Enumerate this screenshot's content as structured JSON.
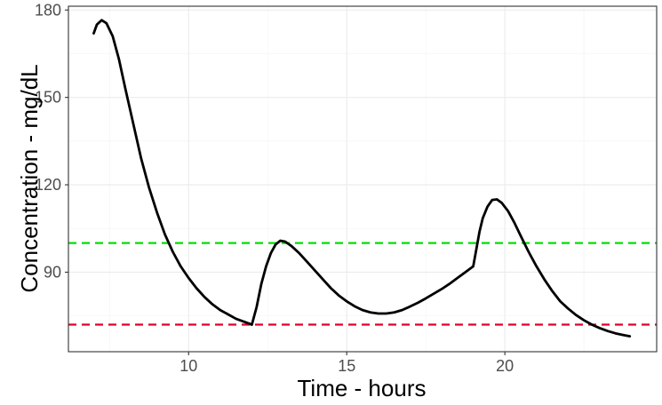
{
  "chart_data": {
    "type": "line",
    "xlabel": "Time - hours",
    "ylabel": "Concentration - mg/dL",
    "xlim": [
      6.2,
      24.8
    ],
    "ylim": [
      62.7,
      181.3
    ],
    "x_ticks": [
      10,
      15,
      20
    ],
    "y_ticks": [
      90,
      120,
      150,
      180
    ],
    "grid": true,
    "series": [
      {
        "color": "#000000",
        "points": [
          [
            7.0,
            172
          ],
          [
            7.1,
            175
          ],
          [
            7.25,
            176.5
          ],
          [
            7.4,
            175.5
          ],
          [
            7.6,
            171
          ],
          [
            7.8,
            163
          ],
          [
            8.0,
            153
          ],
          [
            8.25,
            141
          ],
          [
            8.5,
            129
          ],
          [
            8.75,
            119
          ],
          [
            9.0,
            110.5
          ],
          [
            9.25,
            103
          ],
          [
            9.5,
            97
          ],
          [
            9.75,
            92
          ],
          [
            10.0,
            88
          ],
          [
            10.25,
            84.5
          ],
          [
            10.5,
            81.5
          ],
          [
            10.75,
            79
          ],
          [
            11.0,
            77
          ],
          [
            11.25,
            75.5
          ],
          [
            11.5,
            74
          ],
          [
            11.75,
            73
          ],
          [
            12.0,
            72
          ],
          [
            12.15,
            78
          ],
          [
            12.3,
            86
          ],
          [
            12.45,
            92
          ],
          [
            12.6,
            96.5
          ],
          [
            12.75,
            99.5
          ],
          [
            12.9,
            100.8
          ],
          [
            13.05,
            100.5
          ],
          [
            13.25,
            99
          ],
          [
            13.5,
            96.5
          ],
          [
            13.75,
            93.5
          ],
          [
            14.0,
            90.5
          ],
          [
            14.25,
            87.5
          ],
          [
            14.5,
            84.5
          ],
          [
            14.75,
            82
          ],
          [
            15.0,
            80
          ],
          [
            15.25,
            78.3
          ],
          [
            15.5,
            77
          ],
          [
            15.75,
            76.2
          ],
          [
            16.0,
            75.8
          ],
          [
            16.25,
            75.8
          ],
          [
            16.5,
            76.2
          ],
          [
            16.75,
            77
          ],
          [
            17.0,
            78.2
          ],
          [
            17.25,
            79.5
          ],
          [
            17.5,
            81
          ],
          [
            17.75,
            82.6
          ],
          [
            18.0,
            84.2
          ],
          [
            18.25,
            86
          ],
          [
            18.5,
            88
          ],
          [
            18.75,
            90
          ],
          [
            19.0,
            92
          ],
          [
            19.1,
            98
          ],
          [
            19.2,
            104
          ],
          [
            19.3,
            108.5
          ],
          [
            19.45,
            112.5
          ],
          [
            19.6,
            114.8
          ],
          [
            19.75,
            115
          ],
          [
            19.9,
            113.8
          ],
          [
            20.1,
            111
          ],
          [
            20.3,
            107
          ],
          [
            20.5,
            102.5
          ],
          [
            20.75,
            97
          ],
          [
            21.0,
            92
          ],
          [
            21.25,
            87.5
          ],
          [
            21.5,
            83.5
          ],
          [
            21.75,
            80
          ],
          [
            22.0,
            77.5
          ],
          [
            22.25,
            75.3
          ],
          [
            22.5,
            73.5
          ],
          [
            22.75,
            72
          ],
          [
            23.0,
            70.8
          ],
          [
            23.25,
            69.8
          ],
          [
            23.5,
            69
          ],
          [
            23.75,
            68.4
          ],
          [
            23.95,
            68
          ]
        ]
      }
    ],
    "reference_lines": [
      {
        "y": 100,
        "color": "#00e000",
        "style": "dashed"
      },
      {
        "y": 72,
        "color": "#e0002a",
        "style": "dashed"
      }
    ],
    "colors": {
      "panel_border": "#333333",
      "grid_major": "#ebebeb",
      "grid_minor": "#f5f5f5",
      "tick_text": "#4d4d4d"
    }
  }
}
